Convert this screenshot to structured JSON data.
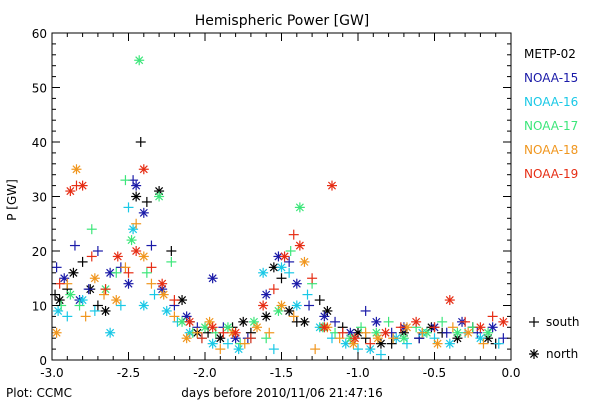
{
  "chart_data": {
    "type": "scatter",
    "title": "Hemispheric Power [GW]",
    "xlabel": "days before 2010/11/06 21:47:16",
    "ylabel": "P [GW]",
    "footer": "Plot: CCMC",
    "xlim": [
      -3.0,
      0.0
    ],
    "ylim": [
      0,
      60
    ],
    "x_ticks": [
      "-3.0",
      "-2.5",
      "-2.0",
      "-1.5",
      "-1.0",
      "-0.5",
      "0.0"
    ],
    "y_ticks": [
      "0",
      "10",
      "20",
      "30",
      "40",
      "50",
      "60"
    ],
    "grid": false,
    "legend_position": "right",
    "marker_legend": [
      {
        "symbol": "+",
        "label": "south"
      },
      {
        "symbol": "*",
        "label": "north"
      }
    ],
    "series": [
      {
        "name": "METP-02",
        "color": "#000000",
        "points": [
          [
            -2.98,
            12,
            "+"
          ],
          [
            -2.95,
            11,
            "*"
          ],
          [
            -2.9,
            13,
            "+"
          ],
          [
            -2.86,
            16,
            "*"
          ],
          [
            -2.8,
            18,
            "+"
          ],
          [
            -2.75,
            13,
            "*"
          ],
          [
            -2.7,
            10,
            "+"
          ],
          [
            -2.65,
            9,
            "*"
          ],
          [
            -2.45,
            30,
            "*"
          ],
          [
            -2.42,
            40,
            "+"
          ],
          [
            -2.38,
            29,
            "+"
          ],
          [
            -2.3,
            31,
            "*"
          ],
          [
            -2.22,
            20,
            "+"
          ],
          [
            -2.15,
            11,
            "*"
          ],
          [
            -2.1,
            7,
            "+"
          ],
          [
            -2.05,
            5,
            "*"
          ],
          [
            -1.98,
            5,
            "+"
          ],
          [
            -1.9,
            4,
            "*"
          ],
          [
            -1.82,
            6,
            "+"
          ],
          [
            -1.75,
            7,
            "*"
          ],
          [
            -1.7,
            5,
            "+"
          ],
          [
            -1.6,
            8,
            "*"
          ],
          [
            -1.55,
            17,
            "*"
          ],
          [
            -1.5,
            15,
            "+"
          ],
          [
            -1.45,
            9,
            "*"
          ],
          [
            -1.4,
            7,
            "+"
          ],
          [
            -1.35,
            7,
            "*"
          ],
          [
            -1.25,
            11,
            "+"
          ],
          [
            -1.2,
            9,
            "*"
          ],
          [
            -1.1,
            6,
            "+"
          ],
          [
            -1.0,
            5,
            "*"
          ],
          [
            -0.95,
            4,
            "+"
          ],
          [
            -0.85,
            3,
            "*"
          ],
          [
            -0.78,
            3,
            "+"
          ],
          [
            -0.7,
            5,
            "*"
          ],
          [
            -0.6,
            4,
            "+"
          ],
          [
            -0.52,
            6,
            "*"
          ],
          [
            -0.45,
            5,
            "+"
          ],
          [
            -0.35,
            4,
            "*"
          ],
          [
            -0.25,
            6,
            "+"
          ],
          [
            -0.15,
            4,
            "*"
          ],
          [
            -0.1,
            3,
            "+"
          ]
        ]
      },
      {
        "name": "NOAA-15",
        "color": "#1a1aa8",
        "points": [
          [
            -2.97,
            17,
            "+"
          ],
          [
            -2.92,
            15,
            "*"
          ],
          [
            -2.85,
            21,
            "+"
          ],
          [
            -2.82,
            11,
            "*"
          ],
          [
            -2.76,
            13,
            "+"
          ],
          [
            -2.7,
            20,
            "+"
          ],
          [
            -2.62,
            16,
            "*"
          ],
          [
            -2.55,
            17,
            "+"
          ],
          [
            -2.5,
            14,
            "*"
          ],
          [
            -2.47,
            33,
            "+"
          ],
          [
            -2.45,
            32,
            "*"
          ],
          [
            -2.4,
            27,
            "*"
          ],
          [
            -2.35,
            21,
            "+"
          ],
          [
            -2.28,
            13,
            "*"
          ],
          [
            -2.2,
            10,
            "+"
          ],
          [
            -2.12,
            8,
            "*"
          ],
          [
            -2.05,
            6,
            "+"
          ],
          [
            -1.95,
            15,
            "*"
          ],
          [
            -1.88,
            6,
            "+"
          ],
          [
            -1.8,
            4,
            "*"
          ],
          [
            -1.72,
            4,
            "+"
          ],
          [
            -1.6,
            12,
            "*"
          ],
          [
            -1.52,
            19,
            "*"
          ],
          [
            -1.45,
            18,
            "+"
          ],
          [
            -1.4,
            14,
            "*"
          ],
          [
            -1.32,
            10,
            "+"
          ],
          [
            -1.22,
            8,
            "*"
          ],
          [
            -1.15,
            7,
            "+"
          ],
          [
            -1.05,
            5,
            "*"
          ],
          [
            -0.95,
            9,
            "+"
          ],
          [
            -0.88,
            7,
            "*"
          ],
          [
            -0.78,
            5,
            "+"
          ],
          [
            -0.7,
            6,
            "*"
          ],
          [
            -0.6,
            4,
            "+"
          ],
          [
            -0.5,
            6,
            "*"
          ],
          [
            -0.42,
            5,
            "+"
          ],
          [
            -0.32,
            7,
            "*"
          ],
          [
            -0.22,
            5,
            "+"
          ],
          [
            -0.12,
            6,
            "*"
          ],
          [
            -0.05,
            4,
            "+"
          ]
        ]
      },
      {
        "name": "NOAA-16",
        "color": "#19c8e6",
        "points": [
          [
            -2.96,
            9,
            "*"
          ],
          [
            -2.9,
            8,
            "+"
          ],
          [
            -2.8,
            11,
            "*"
          ],
          [
            -2.72,
            9,
            "+"
          ],
          [
            -2.62,
            5,
            "*"
          ],
          [
            -2.55,
            10,
            "+"
          ],
          [
            -2.5,
            28,
            "+"
          ],
          [
            -2.47,
            24,
            "*"
          ],
          [
            -2.4,
            10,
            "*"
          ],
          [
            -2.33,
            12,
            "+"
          ],
          [
            -2.25,
            9,
            "*"
          ],
          [
            -2.18,
            7,
            "+"
          ],
          [
            -2.1,
            5,
            "*"
          ],
          [
            -2.02,
            4,
            "+"
          ],
          [
            -1.95,
            3,
            "*"
          ],
          [
            -1.85,
            3,
            "+"
          ],
          [
            -1.78,
            2,
            "*"
          ],
          [
            -1.7,
            4,
            "+"
          ],
          [
            -1.62,
            16,
            "*"
          ],
          [
            -1.55,
            2,
            "+"
          ],
          [
            -1.5,
            17,
            "*"
          ],
          [
            -1.45,
            16,
            "+"
          ],
          [
            -1.4,
            10,
            "*"
          ],
          [
            -1.33,
            12,
            "+"
          ],
          [
            -1.25,
            6,
            "*"
          ],
          [
            -1.17,
            4,
            "+"
          ],
          [
            -1.08,
            3,
            "*"
          ],
          [
            -1.0,
            2,
            "+"
          ],
          [
            -0.92,
            2,
            "*"
          ],
          [
            -0.85,
            1,
            "+"
          ],
          [
            -0.75,
            4,
            "*"
          ],
          [
            -0.68,
            3,
            "+"
          ],
          [
            -0.58,
            5,
            "*"
          ],
          [
            -0.5,
            4,
            "+"
          ],
          [
            -0.4,
            3,
            "*"
          ],
          [
            -0.3,
            5,
            "+"
          ],
          [
            -0.2,
            4,
            "*"
          ],
          [
            -0.08,
            3,
            "+"
          ]
        ]
      },
      {
        "name": "NOAA-17",
        "color": "#3ce67a",
        "points": [
          [
            -2.94,
            10,
            "+"
          ],
          [
            -2.88,
            12,
            "*"
          ],
          [
            -2.82,
            10,
            "+"
          ],
          [
            -2.74,
            24,
            "+"
          ],
          [
            -2.65,
            13,
            "*"
          ],
          [
            -2.58,
            16,
            "+"
          ],
          [
            -2.52,
            33,
            "+"
          ],
          [
            -2.48,
            22,
            "*"
          ],
          [
            -2.43,
            55,
            "*"
          ],
          [
            -2.38,
            16,
            "+"
          ],
          [
            -2.3,
            30,
            "*"
          ],
          [
            -2.22,
            18,
            "+"
          ],
          [
            -2.15,
            7,
            "*"
          ],
          [
            -2.08,
            5,
            "+"
          ],
          [
            -2.0,
            6,
            "*"
          ],
          [
            -1.93,
            5,
            "+"
          ],
          [
            -1.85,
            6,
            "*"
          ],
          [
            -1.77,
            3,
            "+"
          ],
          [
            -1.68,
            7,
            "*"
          ],
          [
            -1.6,
            4,
            "+"
          ],
          [
            -1.52,
            9,
            "*"
          ],
          [
            -1.44,
            20,
            "+"
          ],
          [
            -1.38,
            28,
            "*"
          ],
          [
            -1.3,
            14,
            "+"
          ],
          [
            -1.23,
            6,
            "*"
          ],
          [
            -1.15,
            5,
            "+"
          ],
          [
            -1.05,
            4,
            "*"
          ],
          [
            -0.98,
            6,
            "+"
          ],
          [
            -0.88,
            5,
            "*"
          ],
          [
            -0.8,
            7,
            "+"
          ],
          [
            -0.7,
            4,
            "*"
          ],
          [
            -0.62,
            6,
            "+"
          ],
          [
            -0.55,
            5,
            "*"
          ],
          [
            -0.45,
            7,
            "+"
          ],
          [
            -0.35,
            5,
            "*"
          ],
          [
            -0.25,
            6,
            "+"
          ],
          [
            -0.15,
            5,
            "*"
          ]
        ]
      },
      {
        "name": "NOAA-18",
        "color": "#f0961e",
        "points": [
          [
            -2.97,
            5,
            "*"
          ],
          [
            -2.9,
            14,
            "+"
          ],
          [
            -2.84,
            35,
            "*"
          ],
          [
            -2.78,
            8,
            "+"
          ],
          [
            -2.72,
            15,
            "*"
          ],
          [
            -2.66,
            12,
            "+"
          ],
          [
            -2.58,
            11,
            "*"
          ],
          [
            -2.52,
            17,
            "+"
          ],
          [
            -2.45,
            25,
            "+"
          ],
          [
            -2.4,
            19,
            "*"
          ],
          [
            -2.35,
            14,
            "+"
          ],
          [
            -2.27,
            12,
            "*"
          ],
          [
            -2.2,
            8,
            "+"
          ],
          [
            -2.12,
            4,
            "*"
          ],
          [
            -2.05,
            5,
            "+"
          ],
          [
            -1.97,
            7,
            "*"
          ],
          [
            -1.9,
            2,
            "+"
          ],
          [
            -1.82,
            5,
            "*"
          ],
          [
            -1.74,
            3,
            "+"
          ],
          [
            -1.66,
            6,
            "*"
          ],
          [
            -1.58,
            5,
            "+"
          ],
          [
            -1.5,
            10,
            "*"
          ],
          [
            -1.42,
            8,
            "+"
          ],
          [
            -1.35,
            18,
            "*"
          ],
          [
            -1.28,
            2,
            "+"
          ],
          [
            -1.2,
            6,
            "*"
          ],
          [
            -1.12,
            4,
            "+"
          ],
          [
            -1.03,
            3,
            "*"
          ],
          [
            -0.95,
            5,
            "+"
          ],
          [
            -0.87,
            4,
            "*"
          ],
          [
            -0.77,
            4,
            "+"
          ],
          [
            -0.68,
            6,
            "*"
          ],
          [
            -0.58,
            5,
            "+"
          ],
          [
            -0.48,
            3,
            "*"
          ],
          [
            -0.38,
            6,
            "+"
          ],
          [
            -0.28,
            5,
            "*"
          ],
          [
            -0.18,
            3,
            "+"
          ]
        ]
      },
      {
        "name": "NOAA-19",
        "color": "#e62d14",
        "points": [
          [
            -2.95,
            14,
            "+"
          ],
          [
            -2.88,
            31,
            "*"
          ],
          [
            -2.84,
            32,
            "+"
          ],
          [
            -2.8,
            32,
            "*"
          ],
          [
            -2.74,
            19,
            "+"
          ],
          [
            -2.65,
            13,
            "+"
          ],
          [
            -2.57,
            19,
            "*"
          ],
          [
            -2.5,
            16,
            "+"
          ],
          [
            -2.45,
            20,
            "*"
          ],
          [
            -2.4,
            35,
            "*"
          ],
          [
            -2.35,
            17,
            "+"
          ],
          [
            -2.28,
            14,
            "*"
          ],
          [
            -2.2,
            11,
            "+"
          ],
          [
            -2.1,
            7,
            "*"
          ],
          [
            -2.02,
            4,
            "+"
          ],
          [
            -1.95,
            6,
            "*"
          ],
          [
            -1.88,
            5,
            "+"
          ],
          [
            -1.8,
            5,
            "*"
          ],
          [
            -1.7,
            4,
            "+"
          ],
          [
            -1.62,
            10,
            "*"
          ],
          [
            -1.55,
            13,
            "+"
          ],
          [
            -1.48,
            19,
            "*"
          ],
          [
            -1.42,
            23,
            "+"
          ],
          [
            -1.38,
            21,
            "*"
          ],
          [
            -1.3,
            15,
            "+"
          ],
          [
            -1.22,
            6,
            "*"
          ],
          [
            -1.17,
            32,
            "*"
          ],
          [
            -1.1,
            5,
            "+"
          ],
          [
            -1.02,
            4,
            "*"
          ],
          [
            -0.92,
            3,
            "+"
          ],
          [
            -0.82,
            5,
            "*"
          ],
          [
            -0.72,
            6,
            "+"
          ],
          [
            -0.62,
            7,
            "*"
          ],
          [
            -0.5,
            6,
            "+"
          ],
          [
            -0.4,
            11,
            "*"
          ],
          [
            -0.3,
            7,
            "+"
          ],
          [
            -0.2,
            6,
            "*"
          ],
          [
            -0.12,
            8,
            "+"
          ],
          [
            -0.05,
            7,
            "*"
          ]
        ]
      }
    ]
  }
}
